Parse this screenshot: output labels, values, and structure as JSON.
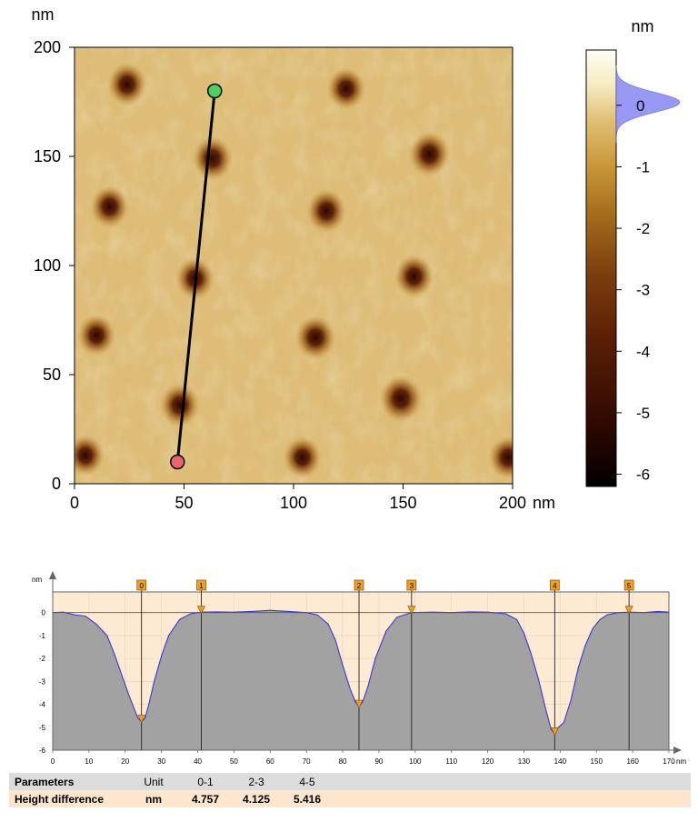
{
  "image": {
    "unit_label": "nm",
    "x_ticks": [
      0,
      50,
      100,
      150,
      200
    ],
    "y_ticks": [
      0,
      50,
      100,
      150,
      200
    ],
    "x_unit": "nm",
    "y_unit": "nm",
    "range": [
      0,
      200
    ],
    "pits": [
      {
        "x": 24,
        "y": 183,
        "depth": 4.6
      },
      {
        "x": 124,
        "y": 181,
        "depth": 4.4
      },
      {
        "x": 63,
        "y": 149,
        "depth": 4.8
      },
      {
        "x": 162,
        "y": 151,
        "depth": 5.0
      },
      {
        "x": 16,
        "y": 127,
        "depth": 4.5
      },
      {
        "x": 115,
        "y": 125,
        "depth": 4.7
      },
      {
        "x": 55,
        "y": 94,
        "depth": 4.4
      },
      {
        "x": 155,
        "y": 95,
        "depth": 4.6
      },
      {
        "x": 10,
        "y": 68,
        "depth": 4.3
      },
      {
        "x": 110,
        "y": 67,
        "depth": 4.8
      },
      {
        "x": 48,
        "y": 36,
        "depth": 4.6
      },
      {
        "x": 149,
        "y": 39,
        "depth": 5.4
      },
      {
        "x": 5,
        "y": 13,
        "depth": 4.2
      },
      {
        "x": 104,
        "y": 12,
        "depth": 4.3
      },
      {
        "x": 198,
        "y": 12,
        "depth": 4.6
      }
    ],
    "line_start": {
      "x": 47,
      "y": 10
    },
    "line_end": {
      "x": 64,
      "y": 180
    }
  },
  "colorbar": {
    "unit": "nm",
    "ticks": [
      0,
      -1,
      -2,
      -3,
      -4,
      -5,
      -6
    ],
    "range": [
      -6.2,
      0.9
    ]
  },
  "chart_data": {
    "type": "area",
    "xlabel": "nm",
    "ylabel": "nm",
    "xlim": [
      0,
      170
    ],
    "ylim": [
      -6,
      0.9
    ],
    "x_ticks": [
      0,
      10,
      20,
      30,
      40,
      50,
      60,
      70,
      80,
      90,
      100,
      110,
      120,
      130,
      140,
      150,
      160,
      170
    ],
    "y_ticks": [
      0,
      -1,
      -2,
      -3,
      -4,
      -5,
      -6
    ],
    "profile": {
      "x": [
        0,
        3,
        6,
        9,
        12,
        15,
        17,
        19,
        21,
        22.5,
        23.5,
        24.5,
        25.5,
        26.5,
        28,
        30,
        32,
        35,
        38,
        41,
        45,
        50,
        55,
        60,
        65,
        70,
        73,
        76,
        78,
        80,
        82,
        83.5,
        84.5,
        85.5,
        87,
        89,
        92,
        95,
        99,
        105,
        110,
        115,
        120,
        125,
        128,
        130,
        132,
        134,
        136,
        137.5,
        138.5,
        139.5,
        141,
        143,
        145,
        147,
        149,
        151,
        153,
        156,
        159,
        163,
        167,
        170
      ],
      "y": [
        0.0,
        0.02,
        -0.1,
        -0.15,
        -0.5,
        -1.0,
        -1.8,
        -2.7,
        -3.6,
        -4.2,
        -4.6,
        -4.75,
        -4.6,
        -4.0,
        -3.0,
        -1.9,
        -1.0,
        -0.3,
        -0.05,
        0.02,
        0.03,
        0.02,
        0.05,
        0.1,
        0.05,
        0.0,
        -0.1,
        -0.5,
        -1.2,
        -2.3,
        -3.3,
        -3.9,
        -4.1,
        -3.9,
        -3.2,
        -2.0,
        -0.8,
        -0.2,
        0.0,
        0.02,
        0.0,
        0.03,
        0.02,
        -0.05,
        -0.3,
        -0.9,
        -1.8,
        -2.9,
        -4.2,
        -5.1,
        -5.3,
        -5.0,
        -4.8,
        -3.8,
        -2.4,
        -1.4,
        -0.7,
        -0.3,
        -0.1,
        0.0,
        0.02,
        0.0,
        0.05,
        0.02
      ]
    },
    "markers": [
      {
        "label": "0",
        "x": 24.5,
        "y": -4.75
      },
      {
        "label": "1",
        "x": 41,
        "y": 0.0
      },
      {
        "label": "2",
        "x": 84.5,
        "y": -4.1
      },
      {
        "label": "3",
        "x": 99,
        "y": 0.0
      },
      {
        "label": "4",
        "x": 138.5,
        "y": -5.3
      },
      {
        "label": "5",
        "x": 159,
        "y": 0.0
      }
    ]
  },
  "table": {
    "headers": [
      "Parameters",
      "Unit",
      "0-1",
      "2-3",
      "4-5"
    ],
    "rows": [
      {
        "label": "Height difference",
        "unit": "nm",
        "values": [
          "4.757",
          "4.125",
          "5.416"
        ]
      }
    ]
  }
}
